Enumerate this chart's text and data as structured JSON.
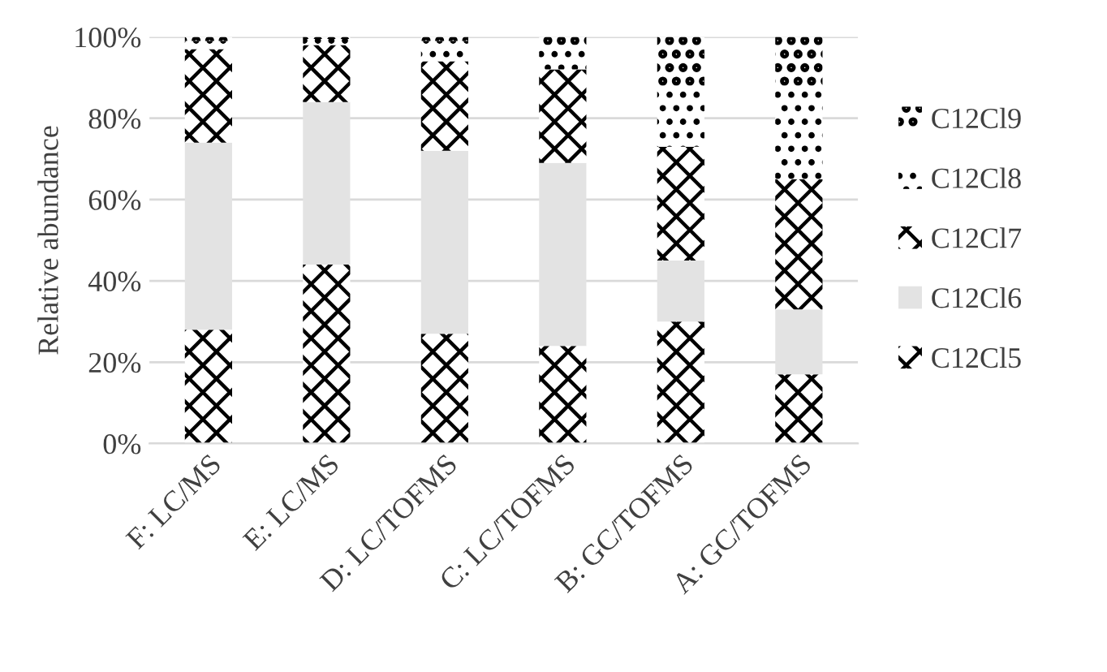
{
  "chart_data": {
    "type": "bar",
    "stacked": true,
    "ylabel": "Relative abundance",
    "categories": [
      "F: LC/MS",
      "E: LC/MS",
      "D: LC/TOFMS",
      "C: LC/TOFMS",
      "B: GC/TOFMS",
      "A: GC/TOFMS"
    ],
    "series": [
      {
        "name": "C12Cl5",
        "color": "#000000",
        "values": [
          28,
          44,
          27,
          24,
          30,
          17
        ]
      },
      {
        "name": "C12Cl6",
        "color": "#e3e3e3",
        "values": [
          46,
          40,
          45,
          45,
          15,
          16
        ]
      },
      {
        "name": "C12Cl7",
        "color": "#000000",
        "values": [
          23,
          14,
          22,
          23,
          28,
          32
        ]
      },
      {
        "name": "C12Cl8",
        "color": "#000000",
        "values": [
          2,
          1.5,
          5,
          6,
          15,
          23
        ]
      },
      {
        "name": "C12Cl9",
        "color": "#000000",
        "values": [
          1,
          0.5,
          1,
          2,
          12,
          12
        ]
      }
    ],
    "ylim": [
      0,
      100
    ],
    "yticks": [
      {
        "value": 0,
        "label": "0%"
      },
      {
        "value": 20,
        "label": "20%"
      },
      {
        "value": 40,
        "label": "40%"
      },
      {
        "value": 60,
        "label": "60%"
      },
      {
        "value": 80,
        "label": "80%"
      },
      {
        "value": 100,
        "label": "100%"
      }
    ],
    "grid": "y",
    "legend": "right"
  }
}
